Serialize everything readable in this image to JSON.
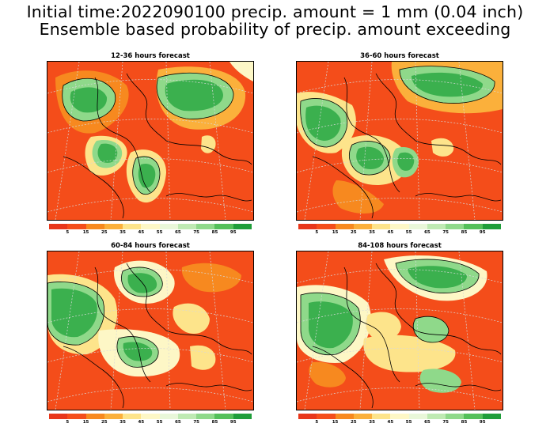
{
  "title": {
    "line1": "Initial time:2022090100 precip. amount = 1 mm (0.04 inch)",
    "line2": "Ensemble based probability of precip. amount exceeding"
  },
  "panels": [
    {
      "title": "12-36 hours forecast"
    },
    {
      "title": "36-60 hours forecast"
    },
    {
      "title": "60-84 hours forecast"
    },
    {
      "title": "84-108 hours forecast"
    }
  ],
  "colorbar": {
    "labels": [
      "5",
      "15",
      "25",
      "35",
      "45",
      "55",
      "65",
      "75",
      "85",
      "95"
    ],
    "colors": [
      "#e8361a",
      "#f44d1a",
      "#f7891f",
      "#fbb03b",
      "#fde48b",
      "#fdf7c6",
      "#e9f7d9",
      "#bfeab3",
      "#8fd98a",
      "#54c05a",
      "#1f9e3a"
    ]
  },
  "map_colors": {
    "land_dry": "#f44d1a",
    "orange": "#f7891f",
    "yellow": "#fde48b",
    "pale": "#fdf7c6",
    "light_green": "#8fd98a",
    "green": "#3bb04e",
    "dark_green": "#1f9e3a",
    "coast": "#000000",
    "grid": "#d8d8d8"
  }
}
